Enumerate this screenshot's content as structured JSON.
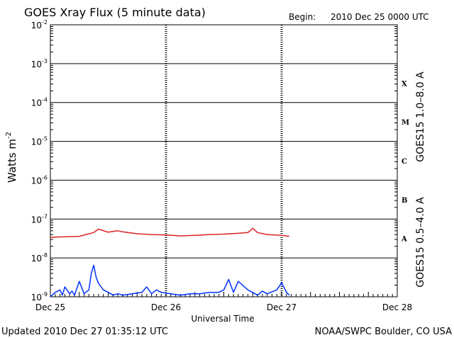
{
  "header": {
    "title": "GOES Xray Flux (5 minute data)",
    "begin_label": "Begin:",
    "begin_value": "2010 Dec 25 0000 UTC"
  },
  "footer": {
    "updated": "Updated 2010 Dec 27 01:35:12 UTC",
    "credit": "NOAA/SWPC Boulder, CO USA"
  },
  "colors": {
    "long_channel": "#dd2222",
    "short_channel": "#0033ff",
    "frame": "#000000"
  },
  "chart_data": {
    "type": "line",
    "title": "GOES Xray Flux (5 minute data)",
    "xlabel": "Universal Time",
    "ylabel_base": "Watts m",
    "ylabel_exp": "-2",
    "yscale": "log",
    "ylim": [
      1e-09,
      0.01
    ],
    "x_start": "2010-12-25T00:00Z",
    "x_ticks": [
      "Dec 25",
      "Dec 26",
      "Dec 27",
      "Dec 28"
    ],
    "y_ticks": [
      {
        "base": "10",
        "exp": "-9",
        "value": 1e-09
      },
      {
        "base": "10",
        "exp": "-8",
        "value": 1e-08
      },
      {
        "base": "10",
        "exp": "-7",
        "value": 1e-07
      },
      {
        "base": "10",
        "exp": "-6",
        "value": 1e-06
      },
      {
        "base": "10",
        "exp": "-5",
        "value": 1e-05
      },
      {
        "base": "10",
        "exp": "-4",
        "value": 0.0001
      },
      {
        "base": "10",
        "exp": "-3",
        "value": 0.001
      },
      {
        "base": "10",
        "exp": "-2",
        "value": 0.01
      }
    ],
    "flare_classes": [
      {
        "label": "A",
        "value": 1e-08
      },
      {
        "label": "B",
        "value": 1e-07
      },
      {
        "label": "C",
        "value": 1e-06
      },
      {
        "label": "M",
        "value": 1e-05
      },
      {
        "label": "X",
        "value": 0.0001
      }
    ],
    "grid": true,
    "series": [
      {
        "name": "GOES15 1.0–8.0 A",
        "x": [
          "2010-12-25T00:00Z",
          "2010-12-25T03:00Z",
          "2010-12-25T06:00Z",
          "2010-12-25T09:00Z",
          "2010-12-25T10:00Z",
          "2010-12-25T12:00Z",
          "2010-12-25T14:00Z",
          "2010-12-25T15:00Z",
          "2010-12-25T18:00Z",
          "2010-12-25T21:00Z",
          "2010-12-26T00:00Z",
          "2010-12-26T03:00Z",
          "2010-12-26T06:00Z",
          "2010-12-26T09:00Z",
          "2010-12-26T12:00Z",
          "2010-12-26T15:00Z",
          "2010-12-26T17:00Z",
          "2010-12-26T18:00Z",
          "2010-12-26T19:00Z",
          "2010-12-26T21:00Z",
          "2010-12-27T00:00Z",
          "2010-12-27T01:35Z"
        ],
        "y": [
          3.4e-08,
          3.5e-08,
          3.6e-08,
          4.5e-08,
          5.5e-08,
          4.6e-08,
          5e-08,
          4.7e-08,
          4.2e-08,
          4e-08,
          3.9e-08,
          3.7e-08,
          3.8e-08,
          4e-08,
          4.1e-08,
          4.3e-08,
          4.5e-08,
          5.8e-08,
          4.5e-08,
          4e-08,
          3.8e-08,
          3.6e-08
        ]
      },
      {
        "name": "GOES15 0.5–4.0 A",
        "x": [
          "2010-12-25T00:00Z",
          "2010-12-25T01:00Z",
          "2010-12-25T02:00Z",
          "2010-12-25T02:30Z",
          "2010-12-25T03:00Z",
          "2010-12-25T04:00Z",
          "2010-12-25T04:30Z",
          "2010-12-25T05:00Z",
          "2010-12-25T06:00Z",
          "2010-12-25T07:00Z",
          "2010-12-25T08:00Z",
          "2010-12-25T08:30Z",
          "2010-12-25T09:00Z",
          "2010-12-25T09:30Z",
          "2010-12-25T10:00Z",
          "2010-12-25T11:00Z",
          "2010-12-25T12:00Z",
          "2010-12-25T13:00Z",
          "2010-12-25T14:00Z",
          "2010-12-25T15:00Z",
          "2010-12-25T17:00Z",
          "2010-12-25T19:00Z",
          "2010-12-25T20:00Z",
          "2010-12-25T21:00Z",
          "2010-12-25T22:00Z",
          "2010-12-25T23:00Z",
          "2010-12-26T01:00Z",
          "2010-12-26T03:00Z",
          "2010-12-26T05:00Z",
          "2010-12-26T07:00Z",
          "2010-12-26T09:00Z",
          "2010-12-26T11:00Z",
          "2010-12-26T12:00Z",
          "2010-12-26T13:00Z",
          "2010-12-26T14:00Z",
          "2010-12-26T15:00Z",
          "2010-12-26T17:00Z",
          "2010-12-26T19:00Z",
          "2010-12-26T20:00Z",
          "2010-12-26T21:00Z",
          "2010-12-26T23:00Z",
          "2010-12-27T00:00Z",
          "2010-12-27T01:00Z",
          "2010-12-27T01:35Z"
        ],
        "y": [
          1e-09,
          1.3e-09,
          1.5e-09,
          1.1e-09,
          1.8e-09,
          1.2e-09,
          1.4e-09,
          1.1e-09,
          2.5e-09,
          1.2e-09,
          1.5e-09,
          4e-09,
          6.5e-09,
          3.2e-09,
          2.2e-09,
          1.5e-09,
          1.3e-09,
          1.1e-09,
          1.2e-09,
          1.1e-09,
          1.2e-09,
          1.3e-09,
          1.8e-09,
          1.2e-09,
          1.5e-09,
          1.3e-09,
          1.2e-09,
          1.1e-09,
          1.2e-09,
          1.2e-09,
          1.3e-09,
          1.3e-09,
          1.5e-09,
          2.8e-09,
          1.3e-09,
          2.5e-09,
          1.5e-09,
          1.1e-09,
          1.4e-09,
          1.2e-09,
          1.5e-09,
          2.3e-09,
          1.3e-09,
          1.1e-09
        ]
      }
    ]
  }
}
